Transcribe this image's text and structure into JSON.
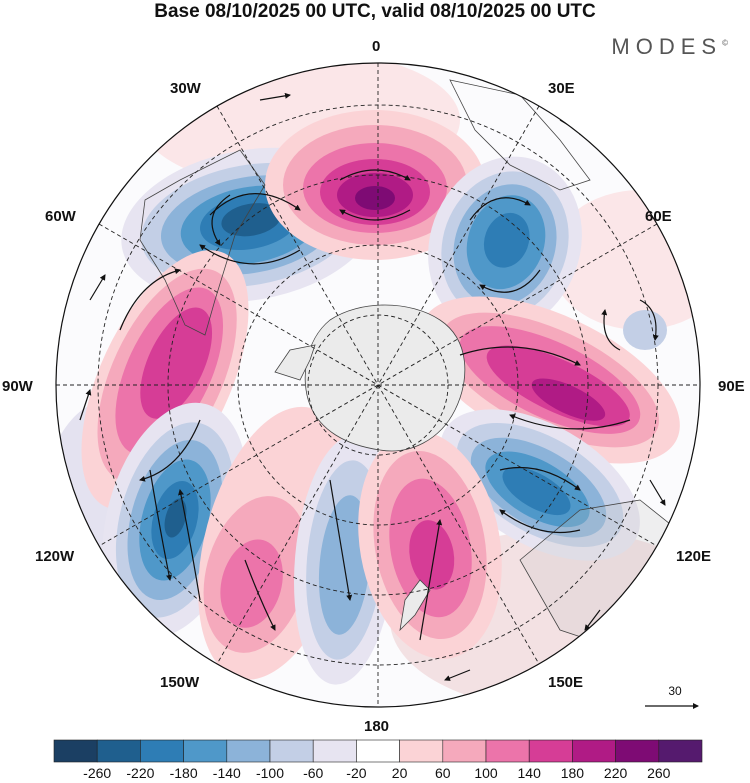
{
  "header": {
    "title": "Base 08/10/2025 00 UTC, valid 08/10/2025 00 UTC",
    "brand": "MODES",
    "brand_mark": "©"
  },
  "map": {
    "projection": "south-polar-stereographic",
    "longitude_labels": {
      "top": "0",
      "top_right": "30E",
      "right_upper": "60E",
      "right": "90E",
      "right_lower": "120E",
      "bottom_right": "150E",
      "bottom": "180",
      "bottom_left": "150W",
      "left_lower": "120W",
      "left": "90W",
      "left_upper": "60W",
      "top_left": "30W"
    },
    "reference_vector": "30",
    "anomaly_centers": [
      {
        "type": "negative",
        "lon": "-40",
        "lat": "-50"
      },
      {
        "type": "positive",
        "lon": "0",
        "lat": "-48"
      },
      {
        "type": "negative",
        "lon": "40",
        "lat": "-48"
      },
      {
        "type": "positive",
        "lon": "-95",
        "lat": "-45"
      },
      {
        "type": "positive",
        "lon": "95",
        "lat": "-50"
      },
      {
        "type": "negative",
        "lon": "-125",
        "lat": "-40"
      },
      {
        "type": "negative",
        "lon": "120",
        "lat": "-45"
      },
      {
        "type": "positive",
        "lon": "-150",
        "lat": "-42"
      },
      {
        "type": "negative",
        "lon": "-170",
        "lat": "-45"
      },
      {
        "type": "positive",
        "lon": "160",
        "lat": "-45"
      }
    ]
  },
  "colorbar": {
    "ticks": [
      "-260",
      "-220",
      "-180",
      "-140",
      "-100",
      "-60",
      "-20",
      "20",
      "60",
      "100",
      "140",
      "180",
      "220",
      "260"
    ],
    "colors": [
      "#1b3f63",
      "#1f5f8e",
      "#2e7db5",
      "#4f98c9",
      "#8cb3d9",
      "#c3cfe6",
      "#e7e4f1",
      "#ffffff",
      "#fbd3d6",
      "#f5a9bc",
      "#ec74aa",
      "#d63d96",
      "#b01b85",
      "#7e0b74",
      "#551a6e"
    ]
  }
}
